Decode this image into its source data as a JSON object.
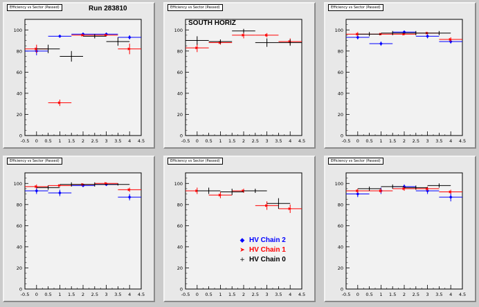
{
  "colors": {
    "chain2": "#0000ff",
    "chain1": "#ff0000",
    "chain0": "#000000"
  },
  "labels": {
    "run": "Run 283810",
    "region": "SOUTH HORIZ"
  },
  "legend": [
    {
      "label": "HV Chain 2",
      "color": "#0000ff",
      "marker": "◆"
    },
    {
      "label": "HV Chain 1",
      "color": "#ff0000",
      "marker": "➤"
    },
    {
      "label": "HV Chain 0",
      "color": "#000000",
      "marker": "+"
    }
  ],
  "chart_data": [
    {
      "type": "scatter",
      "title": "Efficiency vs Sector (Passed)",
      "xlim": [
        -0.5,
        4.5
      ],
      "ylim": [
        0,
        110
      ],
      "xticks": [
        "-0.5",
        "0",
        "0.5",
        "1",
        "1.5",
        "2",
        "2.5",
        "3",
        "3.5",
        "4",
        "4.5"
      ],
      "yticks": [
        "0",
        "20",
        "40",
        "60",
        "80",
        "100"
      ],
      "series": [
        {
          "name": "HV Chain 2",
          "x": [
            0,
            1,
            2,
            3,
            4
          ],
          "y": [
            80,
            94,
            96,
            96,
            93
          ],
          "yerr": [
            4,
            1,
            1,
            1,
            2
          ],
          "xerr": [
            0.5,
            0.5,
            0.5,
            0.5,
            0.5
          ]
        },
        {
          "name": "HV Chain 1",
          "x": [
            0,
            1,
            2,
            3,
            4
          ],
          "y": [
            82,
            31,
            95,
            95,
            82
          ],
          "yerr": [
            4,
            3,
            1,
            1,
            5
          ],
          "xerr": [
            0.5,
            0.5,
            0.5,
            0.5,
            0.5
          ]
        },
        {
          "name": "HV Chain 0",
          "x": [
            0.5,
            1.5,
            2.5,
            3.5
          ],
          "y": [
            82,
            75,
            94,
            89
          ],
          "yerr": [
            4,
            5,
            2,
            4
          ],
          "xerr": [
            0.5,
            0.5,
            0.5,
            0.5
          ]
        }
      ]
    },
    {
      "type": "scatter",
      "title": "Efficiency vs Sector (Passed)",
      "xlim": [
        -0.5,
        4.5
      ],
      "ylim": [
        0,
        110
      ],
      "xticks": [
        "-0.5",
        "0",
        "0.5",
        "1",
        "1.5",
        "2",
        "2.5",
        "3",
        "3.5",
        "4",
        "4.5"
      ],
      "yticks": [
        "0",
        "20",
        "40",
        "60",
        "80",
        "100"
      ],
      "series": [
        {
          "name": "HV Chain 2",
          "x": [],
          "y": [],
          "yerr": [],
          "xerr": []
        },
        {
          "name": "HV Chain 1",
          "x": [
            0,
            1,
            2,
            3,
            4
          ],
          "y": [
            83,
            88,
            95,
            95,
            89
          ],
          "yerr": [
            4,
            2,
            3,
            2,
            3
          ],
          "xerr": [
            0.5,
            0.5,
            0.5,
            0.5,
            0.5
          ]
        },
        {
          "name": "HV Chain 0",
          "x": [
            0,
            1,
            2,
            3,
            4
          ],
          "y": [
            90,
            89,
            99,
            88,
            88
          ],
          "yerr": [
            4,
            2,
            2,
            4,
            3
          ],
          "xerr": [
            0.5,
            0.5,
            0.5,
            0.5,
            0.5
          ]
        }
      ]
    },
    {
      "type": "scatter",
      "title": "Efficiency vs Sector (Passed)",
      "xlim": [
        -0.5,
        4.5
      ],
      "ylim": [
        0,
        110
      ],
      "xticks": [
        "-0.5",
        "0",
        "0.5",
        "1",
        "1.5",
        "2",
        "2.5",
        "3",
        "3.5",
        "4",
        "4.5"
      ],
      "yticks": [
        "0",
        "20",
        "40",
        "60",
        "80",
        "100"
      ],
      "series": [
        {
          "name": "HV Chain 2",
          "x": [
            0,
            1,
            2,
            3,
            4
          ],
          "y": [
            93,
            87,
            98,
            94,
            89
          ],
          "yerr": [
            2,
            2,
            1,
            2,
            2
          ],
          "xerr": [
            0.5,
            0.5,
            0.5,
            0.5,
            0.5
          ]
        },
        {
          "name": "HV Chain 1",
          "x": [
            0,
            1,
            2,
            3,
            4
          ],
          "y": [
            96,
            96,
            96,
            97,
            91
          ],
          "yerr": [
            2,
            1,
            1,
            1,
            2
          ],
          "xerr": [
            0.5,
            0.5,
            0.5,
            0.5,
            0.5
          ]
        },
        {
          "name": "HV Chain 0",
          "x": [
            0.5,
            1.5,
            2.5,
            3.5
          ],
          "y": [
            96,
            97,
            97,
            97
          ],
          "yerr": [
            2,
            2,
            2,
            2
          ],
          "xerr": [
            0.5,
            0.5,
            0.5,
            0.5
          ]
        }
      ]
    },
    {
      "type": "scatter",
      "title": "Efficiency vs Sector (Passed)",
      "xlim": [
        -0.5,
        4.5
      ],
      "ylim": [
        0,
        110
      ],
      "xticks": [
        "-0.5",
        "0",
        "0.5",
        "1",
        "1.5",
        "2",
        "2.5",
        "3",
        "3.5",
        "4",
        "4.5"
      ],
      "yticks": [
        "0",
        "20",
        "40",
        "60",
        "80",
        "100"
      ],
      "series": [
        {
          "name": "HV Chain 2",
          "x": [
            0,
            1,
            2,
            3,
            4
          ],
          "y": [
            93,
            91,
            98,
            99,
            87
          ],
          "yerr": [
            3,
            3,
            1,
            1,
            3
          ],
          "xerr": [
            0.5,
            0.5,
            0.5,
            0.5,
            0.5
          ]
        },
        {
          "name": "HV Chain 1",
          "x": [
            0,
            1,
            2,
            3,
            4
          ],
          "y": [
            97,
            98,
            99,
            100,
            94
          ],
          "yerr": [
            2,
            1,
            1,
            1,
            2
          ],
          "xerr": [
            0.5,
            0.5,
            0.5,
            0.5,
            0.5
          ]
        },
        {
          "name": "HV Chain 0",
          "x": [
            0.5,
            1.5,
            2.5,
            3.5
          ],
          "y": [
            96,
            99,
            99,
            99
          ],
          "yerr": [
            2,
            2,
            2,
            1
          ],
          "xerr": [
            0.5,
            0.5,
            0.5,
            0.5
          ]
        }
      ]
    },
    {
      "type": "scatter",
      "title": "Efficiency vs Sector (Passed)",
      "xlim": [
        -0.5,
        4.5
      ],
      "ylim": [
        0,
        110
      ],
      "xticks": [
        "-0.5",
        "0",
        "0.5",
        "1",
        "1.5",
        "2",
        "2.5",
        "3",
        "3.5",
        "4",
        "4.5"
      ],
      "yticks": [
        "0",
        "20",
        "40",
        "60",
        "80",
        "100"
      ],
      "series": [
        {
          "name": "HV Chain 2",
          "x": [],
          "y": [],
          "yerr": [],
          "xerr": []
        },
        {
          "name": "HV Chain 1",
          "x": [
            0,
            1,
            2,
            3,
            4
          ],
          "y": [
            93,
            89,
            93,
            79,
            76
          ],
          "yerr": [
            3,
            3,
            2,
            4,
            4
          ],
          "xerr": [
            0.5,
            0.5,
            0.5,
            0.5,
            0.5
          ]
        },
        {
          "name": "HV Chain 0",
          "x": [
            0.5,
            1.5,
            2.5,
            3.5
          ],
          "y": [
            93,
            92,
            93,
            81
          ],
          "yerr": [
            3,
            3,
            2,
            5
          ],
          "xerr": [
            0.5,
            0.5,
            0.5,
            0.5
          ]
        }
      ]
    },
    {
      "type": "scatter",
      "title": "Efficiency vs Sector (Passed)",
      "xlim": [
        -0.5,
        4.5
      ],
      "ylim": [
        0,
        110
      ],
      "xticks": [
        "-0.5",
        "0",
        "0.5",
        "1",
        "1.5",
        "2",
        "2.5",
        "3",
        "3.5",
        "4",
        "4.5"
      ],
      "yticks": [
        "0",
        "20",
        "40",
        "60",
        "80",
        "100"
      ],
      "series": [
        {
          "name": "HV Chain 2",
          "x": [
            0,
            1,
            2,
            3,
            4
          ],
          "y": [
            90,
            93,
            97,
            93,
            87
          ],
          "yerr": [
            3,
            3,
            2,
            3,
            4
          ],
          "xerr": [
            0.5,
            0.5,
            0.5,
            0.5,
            0.5
          ]
        },
        {
          "name": "HV Chain 1",
          "x": [
            0,
            1,
            2,
            3,
            4
          ],
          "y": [
            93,
            93,
            95,
            95,
            92
          ],
          "yerr": [
            2,
            2,
            2,
            2,
            2
          ],
          "xerr": [
            0.5,
            0.5,
            0.5,
            0.5,
            0.5
          ]
        },
        {
          "name": "HV Chain 0",
          "x": [
            0.5,
            1.5,
            2.5,
            3.5
          ],
          "y": [
            95,
            97,
            96,
            98
          ],
          "yerr": [
            2,
            2,
            2,
            2
          ],
          "xerr": [
            0.5,
            0.5,
            0.5,
            0.5
          ]
        }
      ]
    }
  ]
}
